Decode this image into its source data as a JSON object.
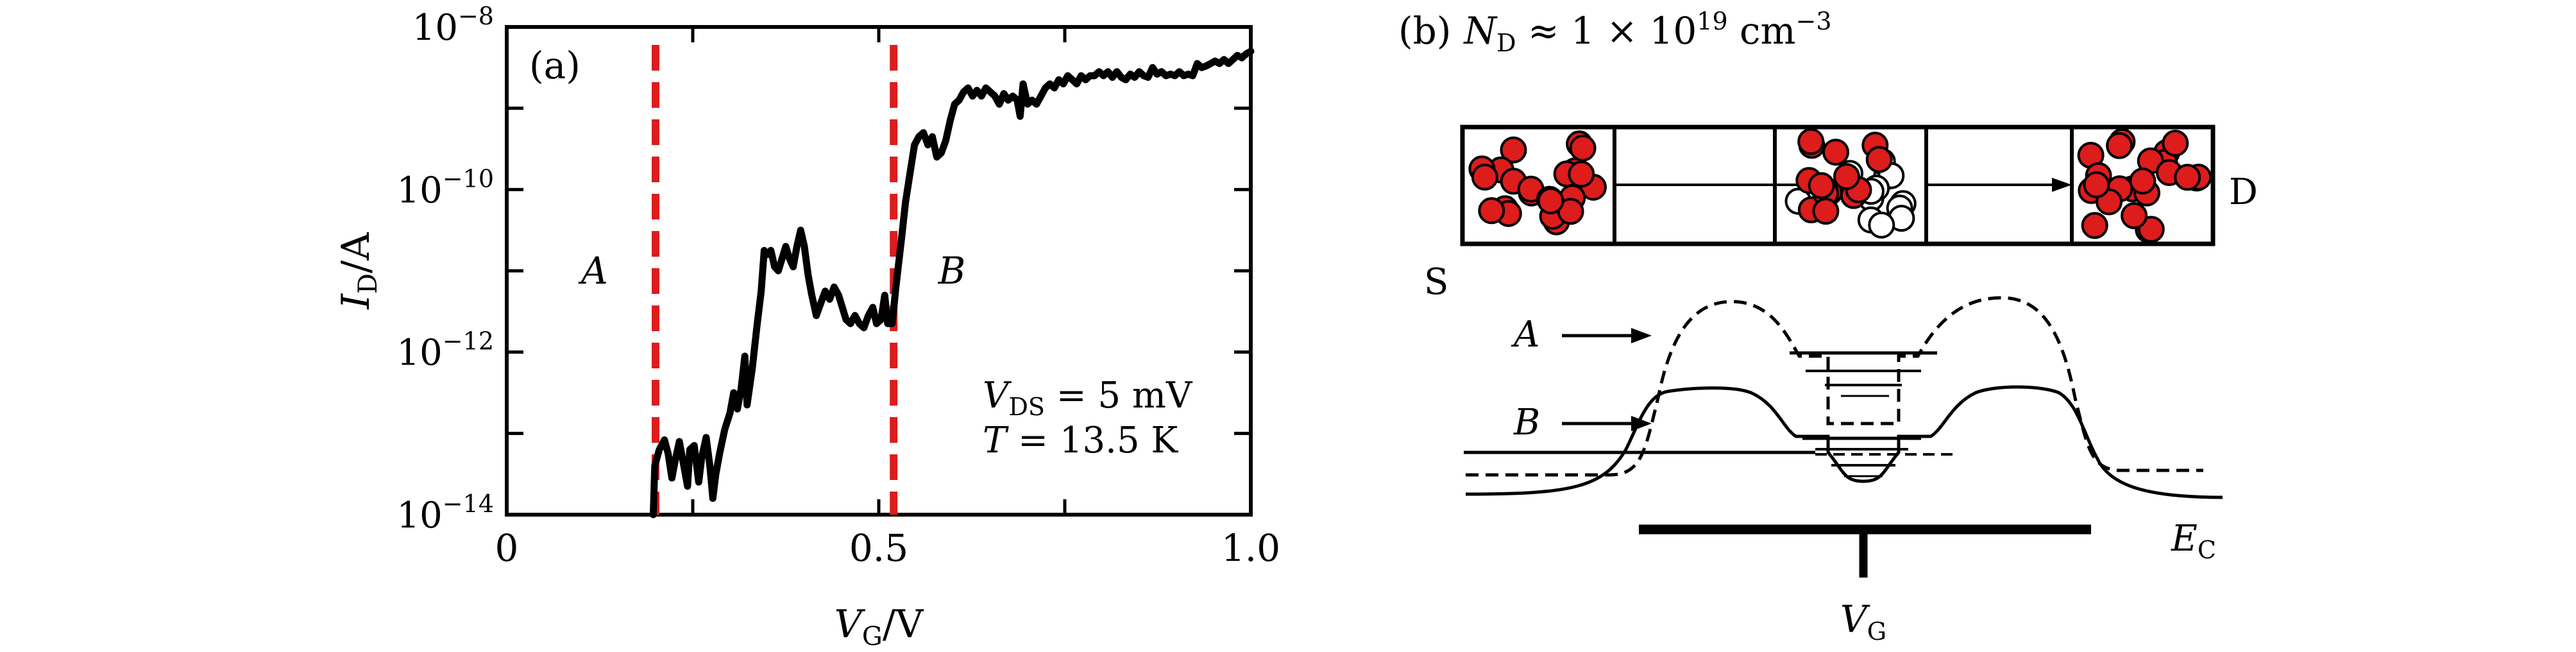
{
  "chart_data": [
    {
      "type": "line",
      "panel_label": "(a)",
      "xlabel": {
        "base": "V",
        "sub": "G",
        "unit": "/V"
      },
      "ylabel": {
        "base": "I",
        "sub": "D",
        "unit": "/A"
      },
      "xlim": [
        0,
        1.0
      ],
      "ylim_exp": [
        -14,
        -8
      ],
      "y_scale": "log",
      "x_ticks": [
        {
          "value": 0,
          "label": "0"
        },
        {
          "value": 0.5,
          "label": "0.5"
        },
        {
          "value": 1.0,
          "label": "1.0"
        }
      ],
      "x_minor_ticks": [
        0.25,
        0.75
      ],
      "y_ticks": [
        {
          "exp": -8,
          "base": "10",
          "sup": "−8"
        },
        {
          "exp": -10,
          "base": "10",
          "sup": "−10"
        },
        {
          "exp": -12,
          "base": "10",
          "sup": "−12"
        },
        {
          "exp": -14,
          "base": "10",
          "sup": "−14"
        }
      ],
      "y_minor_ticks": [
        -9,
        -11,
        -13
      ],
      "series": [
        {
          "color": "#000000",
          "points": [
            [
              0.197,
              -14.0
            ],
            [
              0.199,
              -13.4
            ],
            [
              0.205,
              -13.2
            ],
            [
              0.212,
              -13.08
            ],
            [
              0.217,
              -13.25
            ],
            [
              0.222,
              -13.55
            ],
            [
              0.226,
              -13.35
            ],
            [
              0.232,
              -13.1
            ],
            [
              0.238,
              -13.4
            ],
            [
              0.243,
              -13.65
            ],
            [
              0.246,
              -13.2
            ],
            [
              0.252,
              -13.15
            ],
            [
              0.258,
              -13.6
            ],
            [
              0.262,
              -13.3
            ],
            [
              0.268,
              -13.05
            ],
            [
              0.273,
              -13.4
            ],
            [
              0.277,
              -13.8
            ],
            [
              0.281,
              -13.5
            ],
            [
              0.286,
              -13.25
            ],
            [
              0.293,
              -12.95
            ],
            [
              0.3,
              -12.75
            ],
            [
              0.305,
              -12.5
            ],
            [
              0.31,
              -12.7
            ],
            [
              0.315,
              -12.45
            ],
            [
              0.32,
              -12.05
            ],
            [
              0.323,
              -12.65
            ],
            [
              0.33,
              -12.2
            ],
            [
              0.336,
              -11.7
            ],
            [
              0.342,
              -11.25
            ],
            [
              0.346,
              -10.75
            ],
            [
              0.35,
              -10.8
            ],
            [
              0.355,
              -10.75
            ],
            [
              0.36,
              -10.95
            ],
            [
              0.365,
              -11.0
            ],
            [
              0.37,
              -10.85
            ],
            [
              0.375,
              -10.7
            ],
            [
              0.38,
              -10.85
            ],
            [
              0.385,
              -10.95
            ],
            [
              0.39,
              -10.7
            ],
            [
              0.395,
              -10.5
            ],
            [
              0.4,
              -10.7
            ],
            [
              0.405,
              -11.05
            ],
            [
              0.41,
              -11.3
            ],
            [
              0.416,
              -11.55
            ],
            [
              0.422,
              -11.4
            ],
            [
              0.428,
              -11.25
            ],
            [
              0.434,
              -11.35
            ],
            [
              0.44,
              -11.2
            ],
            [
              0.446,
              -11.3
            ],
            [
              0.451,
              -11.45
            ],
            [
              0.456,
              -11.6
            ],
            [
              0.462,
              -11.65
            ],
            [
              0.468,
              -11.55
            ],
            [
              0.474,
              -11.65
            ],
            [
              0.48,
              -11.7
            ],
            [
              0.486,
              -11.55
            ],
            [
              0.492,
              -11.45
            ],
            [
              0.497,
              -11.65
            ],
            [
              0.503,
              -11.6
            ],
            [
              0.508,
              -11.3
            ],
            [
              0.512,
              -11.65
            ],
            [
              0.518,
              -11.65
            ],
            [
              0.523,
              -11.2
            ],
            [
              0.53,
              -10.65
            ],
            [
              0.536,
              -10.15
            ],
            [
              0.542,
              -9.8
            ],
            [
              0.548,
              -9.45
            ],
            [
              0.554,
              -9.35
            ],
            [
              0.56,
              -9.3
            ],
            [
              0.566,
              -9.45
            ],
            [
              0.572,
              -9.35
            ],
            [
              0.578,
              -9.6
            ],
            [
              0.584,
              -9.55
            ],
            [
              0.59,
              -9.4
            ],
            [
              0.596,
              -9.15
            ],
            [
              0.602,
              -8.95
            ],
            [
              0.608,
              -8.9
            ],
            [
              0.614,
              -8.8
            ],
            [
              0.62,
              -8.75
            ],
            [
              0.626,
              -8.85
            ],
            [
              0.632,
              -8.78
            ],
            [
              0.638,
              -8.85
            ],
            [
              0.644,
              -8.75
            ],
            [
              0.65,
              -8.8
            ],
            [
              0.656,
              -8.85
            ],
            [
              0.662,
              -8.95
            ],
            [
              0.668,
              -8.82
            ],
            [
              0.674,
              -8.9
            ],
            [
              0.68,
              -8.85
            ],
            [
              0.686,
              -8.9
            ],
            [
              0.69,
              -9.1
            ],
            [
              0.694,
              -8.7
            ],
            [
              0.7,
              -8.95
            ],
            [
              0.706,
              -8.9
            ],
            [
              0.712,
              -8.95
            ],
            [
              0.718,
              -8.85
            ],
            [
              0.724,
              -8.75
            ],
            [
              0.73,
              -8.7
            ],
            [
              0.736,
              -8.75
            ],
            [
              0.742,
              -8.65
            ],
            [
              0.748,
              -8.7
            ],
            [
              0.754,
              -8.6
            ],
            [
              0.76,
              -8.65
            ],
            [
              0.766,
              -8.7
            ],
            [
              0.772,
              -8.6
            ],
            [
              0.778,
              -8.65
            ],
            [
              0.784,
              -8.6
            ],
            [
              0.79,
              -8.6
            ],
            [
              0.796,
              -8.55
            ],
            [
              0.802,
              -8.6
            ],
            [
              0.808,
              -8.55
            ],
            [
              0.814,
              -8.62
            ],
            [
              0.82,
              -8.55
            ],
            [
              0.826,
              -8.62
            ],
            [
              0.832,
              -8.65
            ],
            [
              0.838,
              -8.58
            ],
            [
              0.844,
              -8.62
            ],
            [
              0.85,
              -8.55
            ],
            [
              0.856,
              -8.6
            ],
            [
              0.862,
              -8.62
            ],
            [
              0.868,
              -8.5
            ],
            [
              0.874,
              -8.58
            ],
            [
              0.88,
              -8.55
            ],
            [
              0.886,
              -8.6
            ],
            [
              0.892,
              -8.58
            ],
            [
              0.898,
              -8.6
            ],
            [
              0.904,
              -8.55
            ],
            [
              0.91,
              -8.6
            ],
            [
              0.916,
              -8.58
            ],
            [
              0.922,
              -8.6
            ],
            [
              0.928,
              -8.45
            ],
            [
              0.934,
              -8.5
            ],
            [
              0.94,
              -8.48
            ],
            [
              0.946,
              -8.45
            ],
            [
              0.952,
              -8.42
            ],
            [
              0.958,
              -8.45
            ],
            [
              0.964,
              -8.4
            ],
            [
              0.97,
              -8.45
            ],
            [
              0.976,
              -8.4
            ],
            [
              0.982,
              -8.35
            ],
            [
              0.988,
              -8.38
            ],
            [
              0.994,
              -8.33
            ],
            [
              1.0,
              -8.3
            ]
          ]
        }
      ],
      "markers": [
        {
          "x": 0.2,
          "color": "#dd1c1c"
        },
        {
          "x": 0.52,
          "color": "#dd1c1c"
        }
      ],
      "region_labels": [
        {
          "text": "A",
          "x": 0.1,
          "y": -11
        },
        {
          "text": "B",
          "x": 0.58,
          "y": -11
        }
      ],
      "annotations": {
        "vds": {
          "base": "V",
          "sub": "DS",
          "rest": " = 5 mV"
        },
        "temp": {
          "base": "T",
          "rest": " = 13.5 K"
        }
      }
    },
    {
      "type": "diagram",
      "panel_label": "(b)",
      "title": {
        "base": "N",
        "sub": "D",
        "rest1": " ≈ 1 × 10",
        "sup": "19",
        "rest2": " cm",
        "sup2": "−3"
      },
      "source_label": "S",
      "drain_label": "D",
      "gate_label": {
        "base": "V",
        "sub": "G"
      },
      "ec_label": {
        "base": "E",
        "sub": "C"
      },
      "state_labels": [
        "A",
        "B"
      ],
      "filled_color": "#dd1c1c"
    }
  ]
}
